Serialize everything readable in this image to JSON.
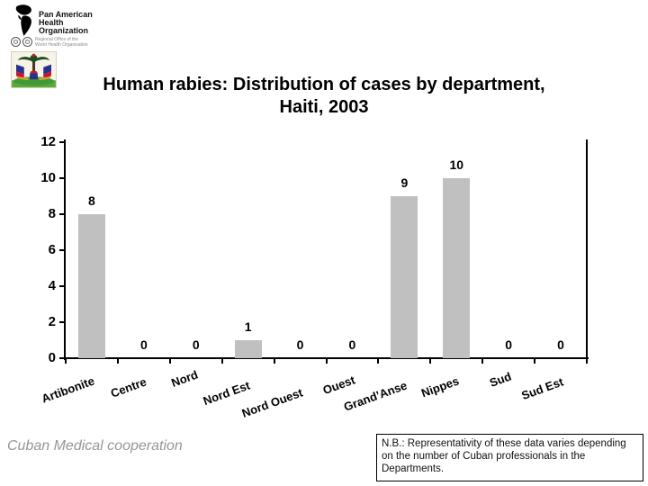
{
  "header": {
    "paho_logo": {
      "org_name": "Pan American\nHealth\nOrganization",
      "sub_text": "Regional Office of the\nWorld Health Organization",
      "icons": [
        "paho-globe-icon",
        "paho-seal-icon",
        "who-seal-icon"
      ]
    },
    "haiti_emblem_name": "haiti-coat-of-arms"
  },
  "title": {
    "line1": "Human rabies: Distribution of cases by department,",
    "line2": "Haiti, 2003"
  },
  "chart_data": {
    "type": "bar",
    "title": "Human rabies: Distribution of cases by department, Haiti, 2003",
    "categories": [
      "Artibonite",
      "Centre",
      "Nord",
      "Nord Est",
      "Nord Ouest",
      "Ouest",
      "Grand’Anse",
      "Nippes",
      "Sud",
      "Sud Est"
    ],
    "values": [
      8,
      0,
      0,
      1,
      0,
      0,
      9,
      10,
      0,
      0
    ],
    "data_labels": [
      "8",
      "0",
      "0",
      "1",
      "0",
      "0",
      "9",
      "10",
      "0",
      "0"
    ],
    "xlabel": "",
    "ylabel": "",
    "ylim": [
      0,
      12
    ],
    "yticks": [
      0,
      2,
      4,
      6,
      8,
      10,
      12
    ],
    "grid": false,
    "legend_position": "none",
    "bar_color": "#c0c0c0",
    "axis_color": "#000000"
  },
  "footer": {
    "credit": "Cuban Medical cooperation",
    "note": "N.B.: Representativity of these data varies depending on the number of Cuban professionals in the Departments."
  }
}
